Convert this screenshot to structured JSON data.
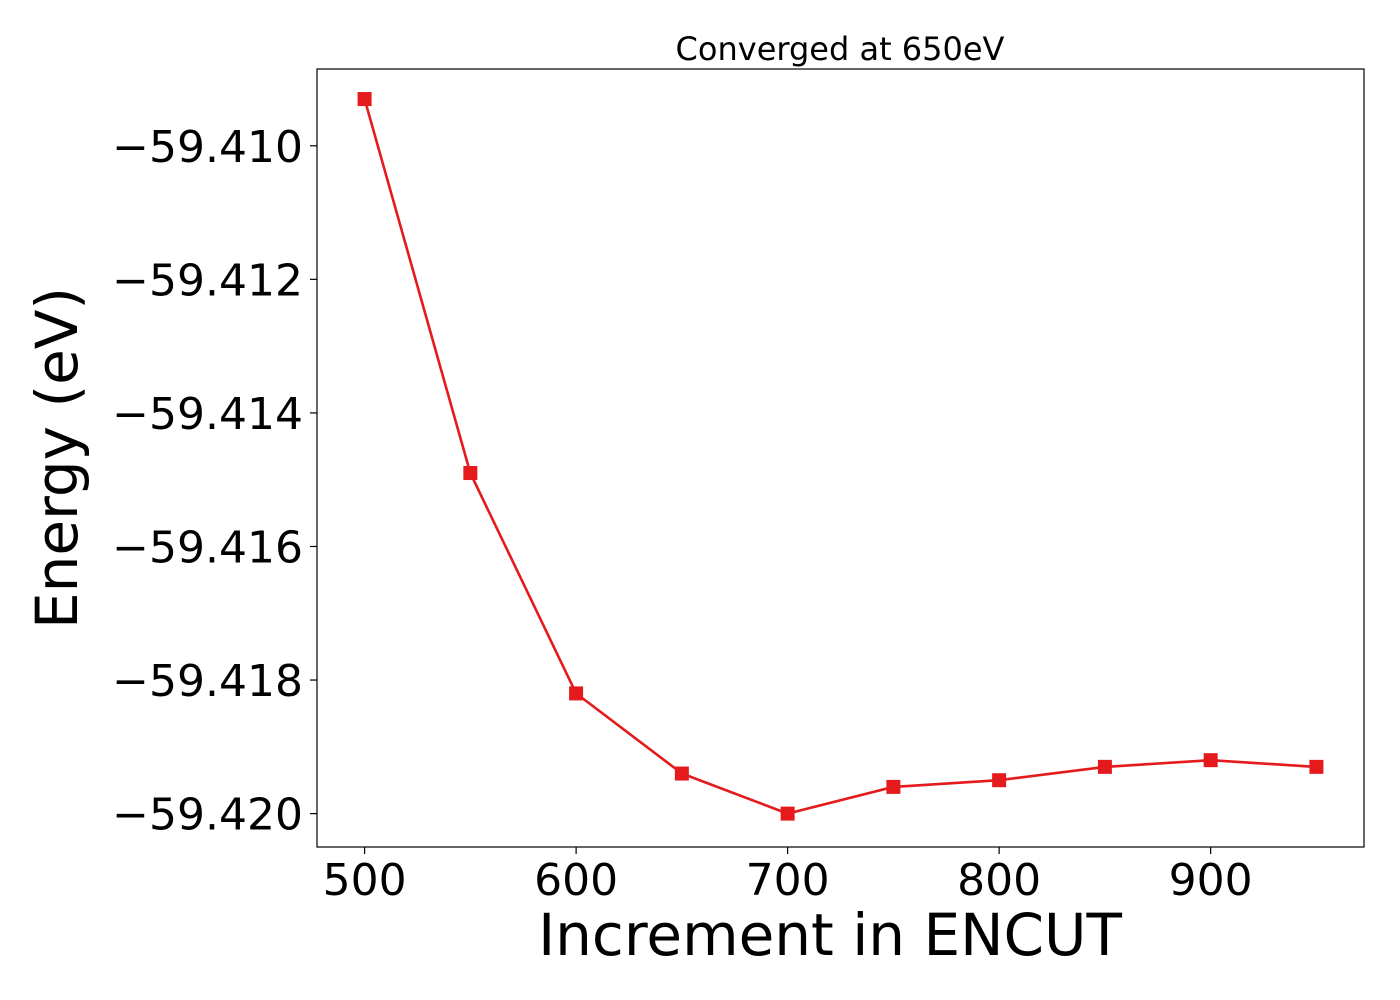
{
  "chart_data": {
    "type": "line",
    "title": "Converged at 650eV",
    "xlabel": "Increment in ENCUT",
    "ylabel": "Energy (eV)",
    "x": [
      500,
      550,
      600,
      650,
      700,
      750,
      800,
      850,
      900,
      950
    ],
    "series": [
      {
        "values": [
          -59.4093,
          -59.4149,
          -59.4182,
          -59.4194,
          -59.42,
          -59.4196,
          -59.4195,
          -59.4193,
          -59.4192,
          -59.4193
        ],
        "color": "#e41a1c",
        "marker": "square"
      }
    ],
    "xlim": [
      477.5,
      972.5
    ],
    "ylim": [
      -59.4205,
      -59.40885
    ],
    "xticks": [
      500,
      600,
      700,
      800,
      900
    ],
    "xtick_labels": [
      "500",
      "600",
      "700",
      "800",
      "900"
    ],
    "yticks": [
      -59.41,
      -59.412,
      -59.414,
      -59.416,
      -59.418,
      -59.42
    ],
    "ytick_labels": [
      "−59.410",
      "−59.412",
      "−59.414",
      "−59.416",
      "−59.418",
      "−59.420"
    ],
    "grid": false,
    "legend": false
  }
}
